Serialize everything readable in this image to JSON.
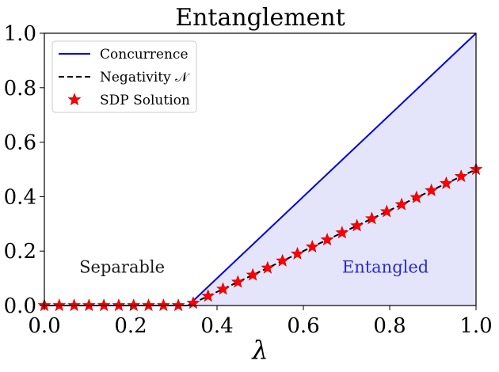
{
  "chart_data": {
    "type": "line",
    "title": "Entanglement",
    "xlabel": "λ",
    "ylabel": "",
    "xlim": [
      0.0,
      1.0
    ],
    "ylim": [
      0.0,
      1.0
    ],
    "xticks": [
      "0.0",
      "0.2",
      "0.4",
      "0.6",
      "0.8",
      "1.0"
    ],
    "yticks": [
      "0.0",
      "0.2",
      "0.4",
      "0.6",
      "0.8",
      "1.0"
    ],
    "xtick_values": [
      0.0,
      0.2,
      0.4,
      0.6,
      0.8,
      1.0
    ],
    "ytick_values": [
      0.0,
      0.2,
      0.4,
      0.6,
      0.8,
      1.0
    ],
    "grid": false,
    "legend_position": "top-left",
    "shaded_region": {
      "x_start": 0.3333,
      "x_end": 1.0,
      "color": "#e4e4fb"
    },
    "region_labels": [
      {
        "text": "Separable",
        "x": 0.18,
        "y": 0.12,
        "color": "#1a1a1a"
      },
      {
        "text": "Entangled",
        "x": 0.79,
        "y": 0.12,
        "color": "#2a2acc"
      }
    ],
    "series": [
      {
        "name": "Concurrence",
        "style": "solid",
        "color": "#0000dd",
        "x": [
          0.0,
          0.3333,
          1.0
        ],
        "y": [
          0.0,
          0.0,
          1.0
        ]
      },
      {
        "name": "Negativity 𝒩",
        "style": "dashed",
        "color": "#000000",
        "x": [
          0.0,
          0.3333,
          1.0
        ],
        "y": [
          0.0,
          0.0,
          0.5
        ]
      },
      {
        "name": "SDP Solution",
        "style": "star-markers",
        "color": "#ff0000",
        "x": [
          0.0,
          0.0345,
          0.069,
          0.1034,
          0.1379,
          0.1724,
          0.2069,
          0.2414,
          0.2759,
          0.3103,
          0.3448,
          0.3793,
          0.4138,
          0.4483,
          0.4828,
          0.5172,
          0.5517,
          0.5862,
          0.6207,
          0.6552,
          0.6897,
          0.7241,
          0.7586,
          0.7931,
          0.8276,
          0.8621,
          0.8966,
          0.931,
          0.9655,
          1.0
        ],
        "y": [
          0.0,
          0.0,
          0.0,
          0.0,
          0.0,
          0.0,
          0.0,
          0.0,
          0.0,
          0.0,
          0.0086,
          0.0345,
          0.0603,
          0.0862,
          0.1121,
          0.1379,
          0.1638,
          0.1897,
          0.2155,
          0.2414,
          0.2672,
          0.2931,
          0.319,
          0.3448,
          0.3707,
          0.3966,
          0.4224,
          0.4483,
          0.4741,
          0.5
        ]
      }
    ]
  }
}
